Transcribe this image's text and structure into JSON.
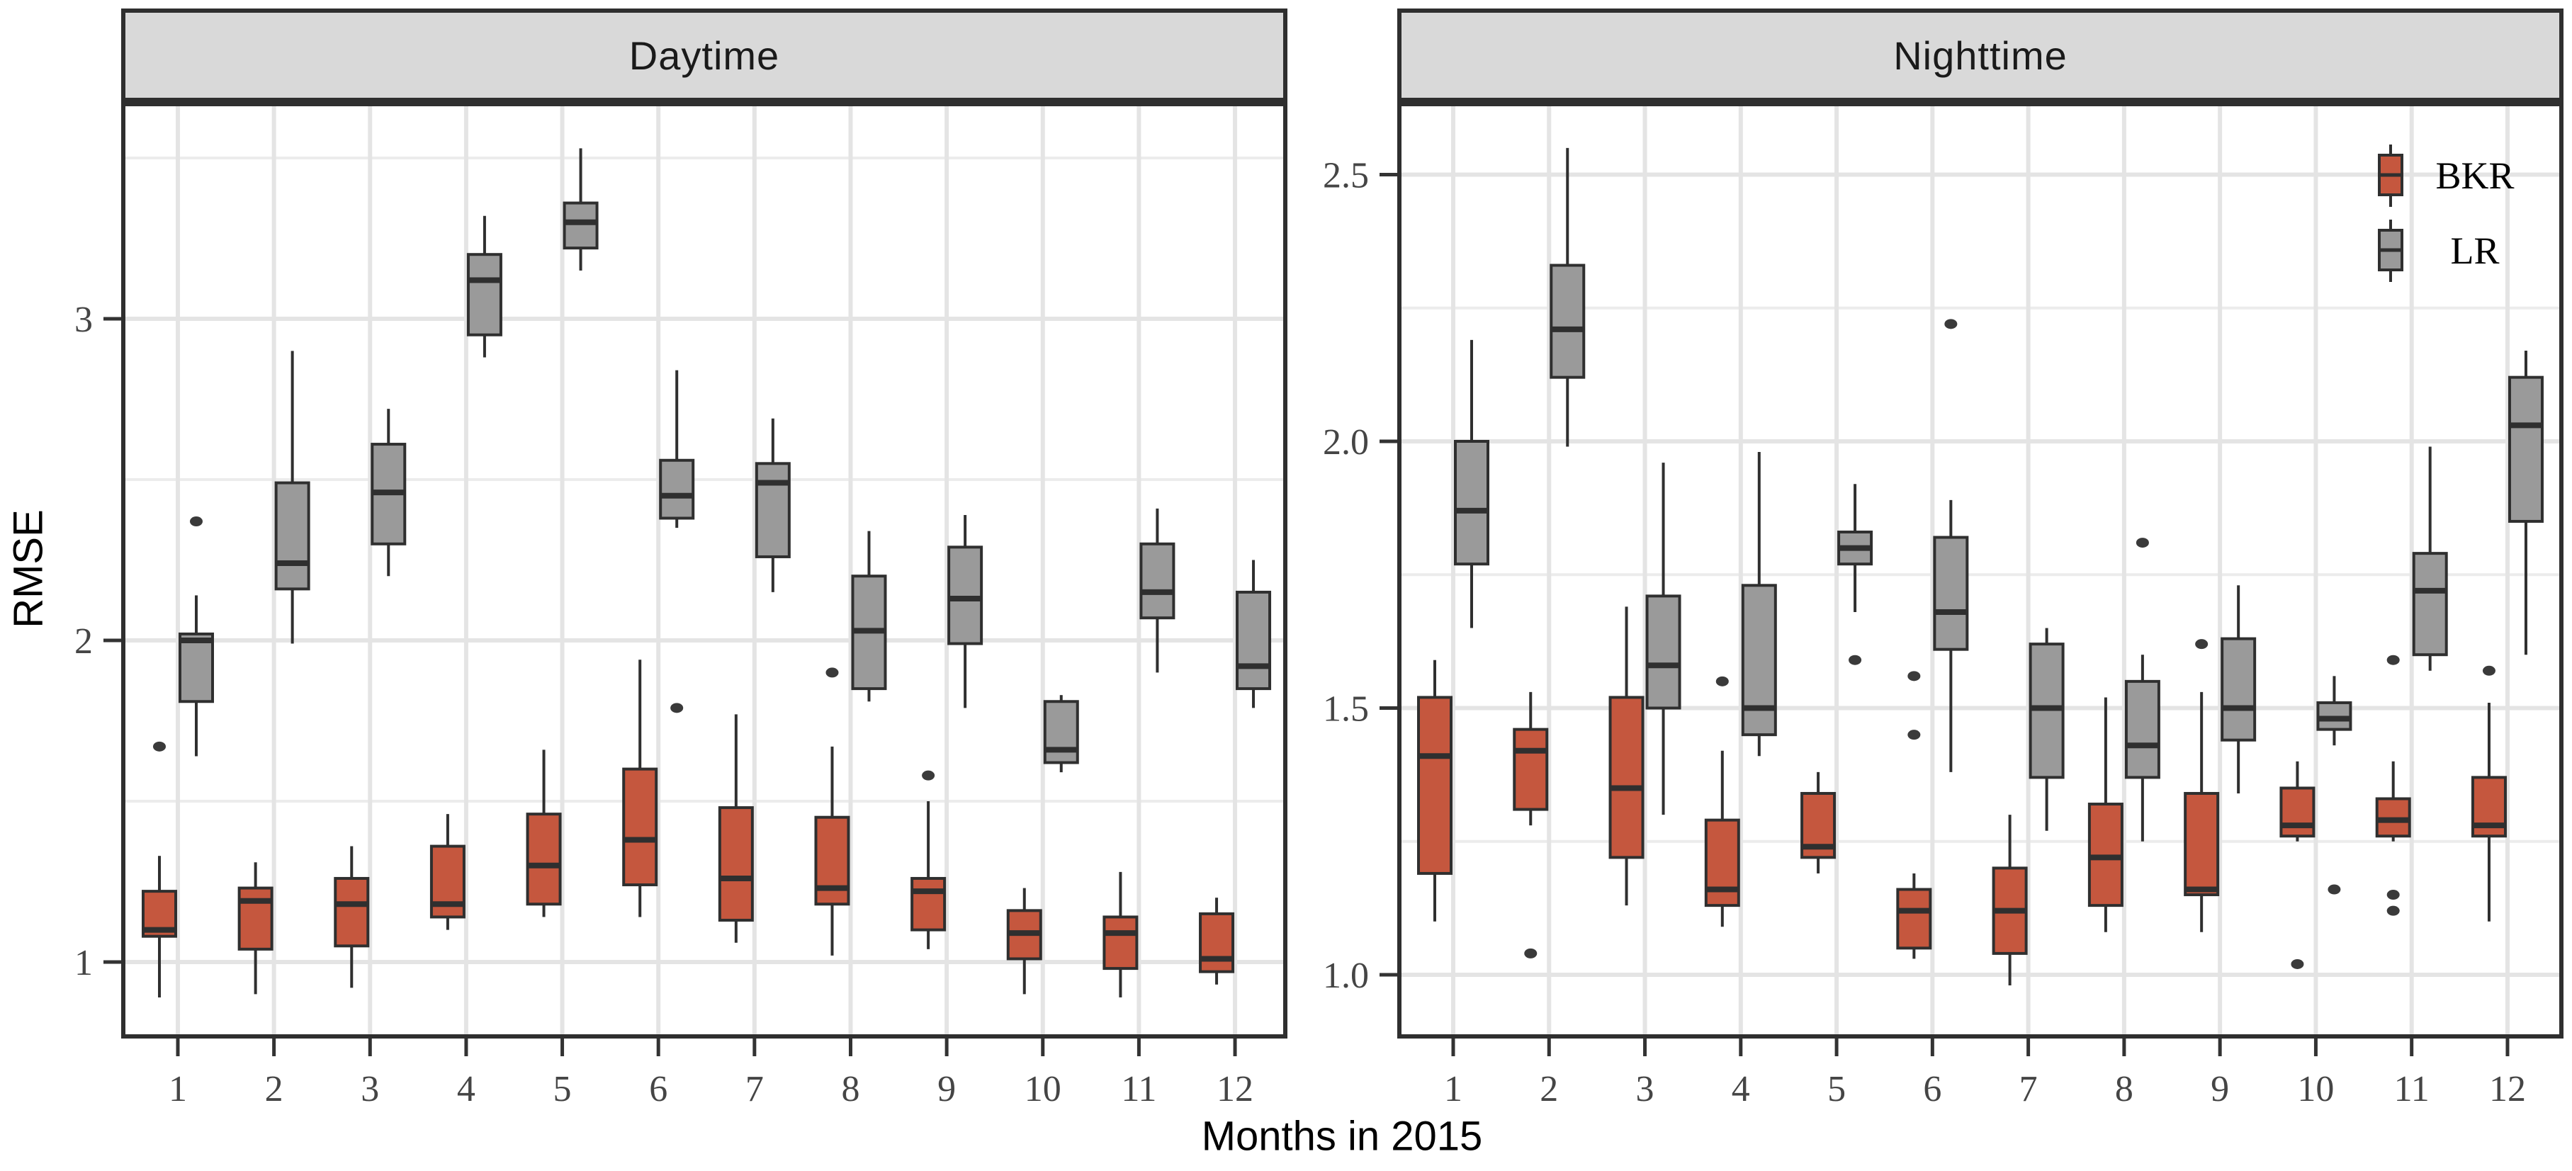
{
  "figure": {
    "x_axis_title": "Months in 2015",
    "y_axis_title": "RMSE",
    "legend": {
      "items": [
        {
          "label": "BKR",
          "color": "#C5573E"
        },
        {
          "label": "LR",
          "color": "#9A9A9A"
        }
      ]
    },
    "colors": {
      "box_stroke": "#2F2F2F",
      "outlier": "#3A3A3A",
      "grid_major": "#E4E4E4",
      "grid_minor": "#ECECEC",
      "strip_bg": "#D9D9D9",
      "tick_label": "#454545",
      "panel_bg": "#FFFFFF"
    }
  },
  "chart_data": {
    "type": "boxplot",
    "title": "",
    "xlabel": "Months in 2015",
    "ylabel": "RMSE",
    "legend_position": "top-right-inside-second-panel",
    "grid": "on",
    "months": [
      1,
      2,
      3,
      4,
      5,
      6,
      7,
      8,
      9,
      10,
      11,
      12
    ],
    "month_labels": [
      "1",
      "2",
      "3",
      "4",
      "5",
      "6",
      "7",
      "8",
      "9",
      "10",
      "11",
      "12"
    ],
    "facets": [
      {
        "title": "Daytime",
        "ylim": [
          0.77,
          3.66
        ],
        "y_ticks": [
          {
            "v": 1,
            "label": "1"
          },
          {
            "v": 2,
            "label": "2"
          },
          {
            "v": 3,
            "label": "3"
          }
        ],
        "y_minor": [
          1.5,
          2.5,
          3.5
        ],
        "series": [
          {
            "name": "BKR",
            "boxes": [
              {
                "month": 1,
                "lo": 0.89,
                "q1": 1.08,
                "med": 1.1,
                "q3": 1.22,
                "hi": 1.33,
                "outliers": [
                  1.67
                ]
              },
              {
                "month": 2,
                "lo": 0.9,
                "q1": 1.04,
                "med": 1.19,
                "q3": 1.23,
                "hi": 1.31,
                "outliers": []
              },
              {
                "month": 3,
                "lo": 0.92,
                "q1": 1.05,
                "med": 1.18,
                "q3": 1.26,
                "hi": 1.36,
                "outliers": []
              },
              {
                "month": 4,
                "lo": 1.1,
                "q1": 1.14,
                "med": 1.18,
                "q3": 1.36,
                "hi": 1.46,
                "outliers": []
              },
              {
                "month": 5,
                "lo": 1.14,
                "q1": 1.18,
                "med": 1.3,
                "q3": 1.46,
                "hi": 1.66,
                "outliers": []
              },
              {
                "month": 6,
                "lo": 1.14,
                "q1": 1.24,
                "med": 1.38,
                "q3": 1.6,
                "hi": 1.94,
                "outliers": []
              },
              {
                "month": 7,
                "lo": 1.06,
                "q1": 1.13,
                "med": 1.26,
                "q3": 1.48,
                "hi": 1.77,
                "outliers": []
              },
              {
                "month": 8,
                "lo": 1.02,
                "q1": 1.18,
                "med": 1.23,
                "q3": 1.45,
                "hi": 1.67,
                "outliers": [
                  1.9
                ]
              },
              {
                "month": 9,
                "lo": 1.04,
                "q1": 1.1,
                "med": 1.22,
                "q3": 1.26,
                "hi": 1.5,
                "outliers": [
                  1.58
                ]
              },
              {
                "month": 10,
                "lo": 0.9,
                "q1": 1.01,
                "med": 1.09,
                "q3": 1.16,
                "hi": 1.23,
                "outliers": []
              },
              {
                "month": 11,
                "lo": 0.89,
                "q1": 0.98,
                "med": 1.09,
                "q3": 1.14,
                "hi": 1.28,
                "outliers": []
              },
              {
                "month": 12,
                "lo": 0.93,
                "q1": 0.97,
                "med": 1.01,
                "q3": 1.15,
                "hi": 1.2,
                "outliers": []
              }
            ]
          },
          {
            "name": "LR",
            "boxes": [
              {
                "month": 1,
                "lo": 1.64,
                "q1": 1.81,
                "med": 2.0,
                "q3": 2.02,
                "hi": 2.14,
                "outliers": [
                  2.37
                ]
              },
              {
                "month": 2,
                "lo": 1.99,
                "q1": 2.16,
                "med": 2.24,
                "q3": 2.49,
                "hi": 2.9,
                "outliers": []
              },
              {
                "month": 3,
                "lo": 2.2,
                "q1": 2.3,
                "med": 2.46,
                "q3": 2.61,
                "hi": 2.72,
                "outliers": []
              },
              {
                "month": 4,
                "lo": 2.88,
                "q1": 2.95,
                "med": 3.12,
                "q3": 3.2,
                "hi": 3.32,
                "outliers": []
              },
              {
                "month": 5,
                "lo": 3.15,
                "q1": 3.22,
                "med": 3.3,
                "q3": 3.36,
                "hi": 3.53,
                "outliers": []
              },
              {
                "month": 6,
                "lo": 2.35,
                "q1": 2.38,
                "med": 2.45,
                "q3": 2.56,
                "hi": 2.84,
                "outliers": [
                  1.79
                ]
              },
              {
                "month": 7,
                "lo": 2.15,
                "q1": 2.26,
                "med": 2.49,
                "q3": 2.55,
                "hi": 2.69,
                "outliers": []
              },
              {
                "month": 8,
                "lo": 1.81,
                "q1": 1.85,
                "med": 2.03,
                "q3": 2.2,
                "hi": 2.34,
                "outliers": []
              },
              {
                "month": 9,
                "lo": 1.79,
                "q1": 1.99,
                "med": 2.13,
                "q3": 2.29,
                "hi": 2.39,
                "outliers": []
              },
              {
                "month": 10,
                "lo": 1.59,
                "q1": 1.62,
                "med": 1.66,
                "q3": 1.81,
                "hi": 1.83,
                "outliers": []
              },
              {
                "month": 11,
                "lo": 1.9,
                "q1": 2.07,
                "med": 2.15,
                "q3": 2.3,
                "hi": 2.41,
                "outliers": []
              },
              {
                "month": 12,
                "lo": 1.79,
                "q1": 1.85,
                "med": 1.92,
                "q3": 2.15,
                "hi": 2.25,
                "outliers": []
              }
            ]
          }
        ]
      },
      {
        "title": "Nighttime",
        "ylim": [
          0.88,
          2.63
        ],
        "y_ticks": [
          {
            "v": 1,
            "label": "1.0"
          },
          {
            "v": 1.5,
            "label": "1.5"
          },
          {
            "v": 2,
            "label": "2.0"
          },
          {
            "v": 2.5,
            "label": "2.5"
          }
        ],
        "y_minor": [
          1.25,
          1.75,
          2.25
        ],
        "series": [
          {
            "name": "BKR",
            "boxes": [
              {
                "month": 1,
                "lo": 1.1,
                "q1": 1.19,
                "med": 1.41,
                "q3": 1.52,
                "hi": 1.59,
                "outliers": []
              },
              {
                "month": 2,
                "lo": 1.28,
                "q1": 1.31,
                "med": 1.42,
                "q3": 1.46,
                "hi": 1.53,
                "outliers": [
                  1.04
                ]
              },
              {
                "month": 3,
                "lo": 1.13,
                "q1": 1.22,
                "med": 1.35,
                "q3": 1.52,
                "hi": 1.69,
                "outliers": []
              },
              {
                "month": 4,
                "lo": 1.09,
                "q1": 1.13,
                "med": 1.16,
                "q3": 1.29,
                "hi": 1.42,
                "outliers": [
                  1.55
                ]
              },
              {
                "month": 5,
                "lo": 1.19,
                "q1": 1.22,
                "med": 1.24,
                "q3": 1.34,
                "hi": 1.38,
                "outliers": []
              },
              {
                "month": 6,
                "lo": 1.03,
                "q1": 1.05,
                "med": 1.12,
                "q3": 1.16,
                "hi": 1.19,
                "outliers": [
                  1.45,
                  1.56
                ]
              },
              {
                "month": 7,
                "lo": 0.98,
                "q1": 1.04,
                "med": 1.12,
                "q3": 1.2,
                "hi": 1.3,
                "outliers": []
              },
              {
                "month": 8,
                "lo": 1.08,
                "q1": 1.13,
                "med": 1.22,
                "q3": 1.32,
                "hi": 1.52,
                "outliers": []
              },
              {
                "month": 9,
                "lo": 1.08,
                "q1": 1.15,
                "med": 1.16,
                "q3": 1.34,
                "hi": 1.53,
                "outliers": [
                  1.62
                ]
              },
              {
                "month": 10,
                "lo": 1.25,
                "q1": 1.26,
                "med": 1.28,
                "q3": 1.35,
                "hi": 1.4,
                "outliers": [
                  1.02
                ]
              },
              {
                "month": 11,
                "lo": 1.25,
                "q1": 1.26,
                "med": 1.29,
                "q3": 1.33,
                "hi": 1.4,
                "outliers": [
                  1.59,
                  1.15,
                  1.12
                ]
              },
              {
                "month": 12,
                "lo": 1.1,
                "q1": 1.26,
                "med": 1.28,
                "q3": 1.37,
                "hi": 1.51,
                "outliers": [
                  1.57
                ]
              }
            ]
          },
          {
            "name": "LR",
            "boxes": [
              {
                "month": 1,
                "lo": 1.65,
                "q1": 1.77,
                "med": 1.87,
                "q3": 2.0,
                "hi": 2.19,
                "outliers": []
              },
              {
                "month": 2,
                "lo": 1.99,
                "q1": 2.12,
                "med": 2.21,
                "q3": 2.33,
                "hi": 2.55,
                "outliers": []
              },
              {
                "month": 3,
                "lo": 1.3,
                "q1": 1.5,
                "med": 1.58,
                "q3": 1.71,
                "hi": 1.96,
                "outliers": []
              },
              {
                "month": 4,
                "lo": 1.41,
                "q1": 1.45,
                "med": 1.5,
                "q3": 1.73,
                "hi": 1.98,
                "outliers": []
              },
              {
                "month": 5,
                "lo": 1.68,
                "q1": 1.77,
                "med": 1.8,
                "q3": 1.83,
                "hi": 1.92,
                "outliers": [
                  1.59
                ]
              },
              {
                "month": 6,
                "lo": 1.38,
                "q1": 1.61,
                "med": 1.68,
                "q3": 1.82,
                "hi": 1.89,
                "outliers": [
                  2.22
                ]
              },
              {
                "month": 7,
                "lo": 1.27,
                "q1": 1.37,
                "med": 1.5,
                "q3": 1.62,
                "hi": 1.65,
                "outliers": []
              },
              {
                "month": 8,
                "lo": 1.25,
                "q1": 1.37,
                "med": 1.43,
                "q3": 1.55,
                "hi": 1.6,
                "outliers": [
                  1.81
                ]
              },
              {
                "month": 9,
                "lo": 1.34,
                "q1": 1.44,
                "med": 1.5,
                "q3": 1.63,
                "hi": 1.73,
                "outliers": []
              },
              {
                "month": 10,
                "lo": 1.43,
                "q1": 1.46,
                "med": 1.48,
                "q3": 1.51,
                "hi": 1.56,
                "outliers": [
                  1.16
                ]
              },
              {
                "month": 11,
                "lo": 1.57,
                "q1": 1.6,
                "med": 1.72,
                "q3": 1.79,
                "hi": 1.99,
                "outliers": []
              },
              {
                "month": 12,
                "lo": 1.6,
                "q1": 1.85,
                "med": 2.03,
                "q3": 2.12,
                "hi": 2.17,
                "outliers": []
              }
            ]
          }
        ]
      }
    ]
  }
}
